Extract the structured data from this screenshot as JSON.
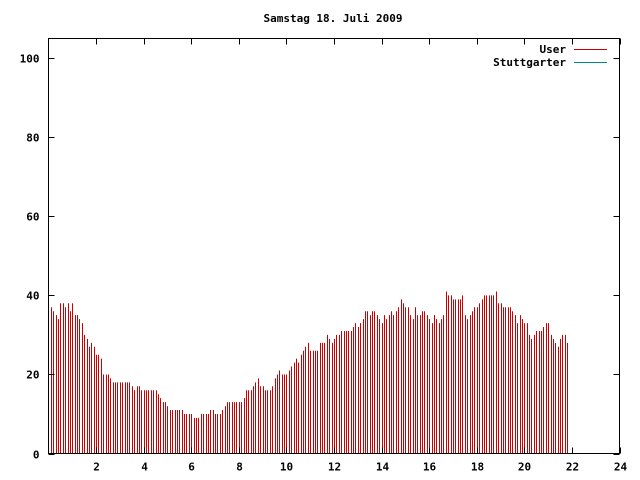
{
  "chart_data": {
    "type": "bar",
    "title": "Samstag 18. Juli 2009",
    "xlabel": "",
    "ylabel": "",
    "xlim": [
      0,
      24
    ],
    "ylim": [
      0,
      105
    ],
    "x_ticks": [
      {
        "value": 2,
        "label": "2"
      },
      {
        "value": 4,
        "label": "4"
      },
      {
        "value": 6,
        "label": "6"
      },
      {
        "value": 8,
        "label": "8"
      },
      {
        "value": 10,
        "label": "10"
      },
      {
        "value": 12,
        "label": "12"
      },
      {
        "value": 14,
        "label": "14"
      },
      {
        "value": 16,
        "label": "16"
      },
      {
        "value": 18,
        "label": "18"
      },
      {
        "value": 20,
        "label": "20"
      },
      {
        "value": 22,
        "label": "22"
      },
      {
        "value": 24,
        "label": "24"
      }
    ],
    "y_ticks": [
      {
        "value": 0,
        "label": "0"
      },
      {
        "value": 20,
        "label": "20"
      },
      {
        "value": 40,
        "label": "40"
      },
      {
        "value": 60,
        "label": "60"
      },
      {
        "value": 80,
        "label": "80"
      },
      {
        "value": 100,
        "label": "100"
      }
    ],
    "grid": false,
    "legend_position": "top-right",
    "colors": {
      "User": "#cc0000",
      "Stuttgarter": "#008b8b"
    },
    "series": [
      {
        "name": "User",
        "x_start": 0,
        "x_step": 0.1,
        "values": [
          37,
          36,
          35,
          34,
          38,
          38,
          37,
          38,
          36,
          38,
          35,
          35,
          34,
          33,
          30,
          29,
          27,
          28,
          27,
          25,
          25,
          24,
          20,
          20,
          20,
          19,
          18,
          18,
          18,
          18,
          18,
          18,
          18,
          18,
          17,
          16,
          17,
          17,
          16,
          16,
          16,
          16,
          16,
          16,
          16,
          15,
          14,
          13,
          13,
          12,
          11,
          11,
          11,
          11,
          11,
          11,
          10,
          10,
          10,
          10,
          9,
          9,
          9,
          10,
          10,
          10,
          10,
          11,
          11,
          10,
          10,
          10,
          11,
          12,
          13,
          13,
          13,
          13,
          13,
          13,
          13,
          14,
          16,
          16,
          16,
          17,
          18,
          19,
          17,
          17,
          16,
          16,
          16,
          17,
          19,
          20,
          21,
          20,
          20,
          20,
          21,
          22,
          23,
          24,
          23,
          25,
          26,
          27,
          28,
          26,
          26,
          26,
          26,
          28,
          28,
          28,
          30,
          29,
          28,
          29,
          30,
          30,
          31,
          31,
          31,
          31,
          31,
          32,
          33,
          32,
          33,
          34,
          36,
          36,
          35,
          36,
          36,
          35,
          34,
          33,
          35,
          34,
          35,
          36,
          35,
          36,
          37,
          39,
          38,
          37,
          37,
          35,
          34,
          37,
          35,
          35,
          36,
          36,
          35,
          34,
          33,
          35,
          34,
          33,
          34,
          35,
          41,
          40,
          40,
          39,
          39,
          39,
          39,
          40,
          35,
          34,
          35,
          36,
          37,
          37,
          38,
          39,
          40,
          40,
          40,
          40,
          40,
          41,
          38,
          38,
          37,
          37,
          37,
          37,
          36,
          35,
          33,
          35,
          34,
          33,
          33,
          30,
          29,
          30,
          31,
          31,
          31,
          32,
          33,
          33,
          30,
          29,
          28,
          27,
          29,
          30,
          30,
          28
        ]
      },
      {
        "name": "Stuttgarter",
        "x_start": 0,
        "x_step": 0.1,
        "values": []
      }
    ]
  }
}
